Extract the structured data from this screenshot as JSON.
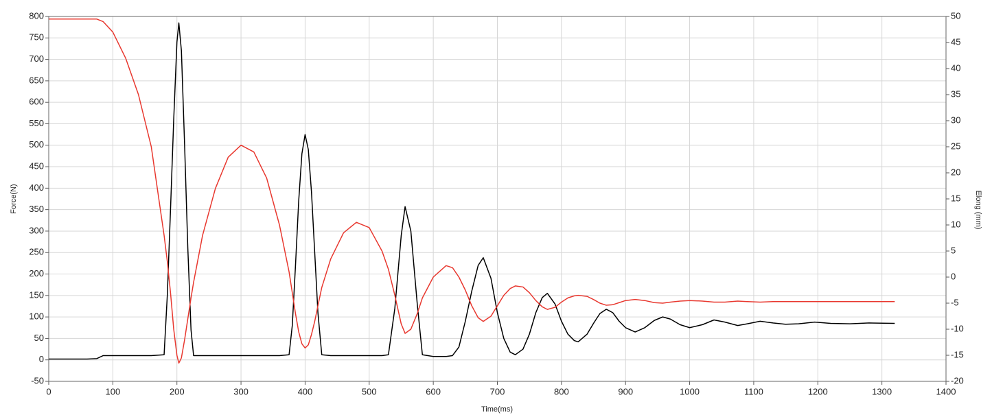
{
  "chart_data": {
    "type": "line",
    "xlabel": "Time(ms)",
    "ylabel": "Force(N)",
    "y2label": "Elong (mm)",
    "xlim": [
      0,
      1400
    ],
    "xticks": [
      0,
      100,
      200,
      300,
      400,
      500,
      600,
      700,
      800,
      900,
      1000,
      1100,
      1200,
      1300,
      1400
    ],
    "ylim": [
      -50,
      800
    ],
    "yticks": [
      -50,
      0,
      50,
      100,
      150,
      200,
      250,
      300,
      350,
      400,
      450,
      500,
      550,
      600,
      650,
      700,
      750,
      800
    ],
    "y2lim": [
      -20,
      50
    ],
    "y2ticks": [
      -20,
      -15,
      -10,
      -5,
      0,
      5,
      10,
      15,
      20,
      25,
      30,
      35,
      40,
      45,
      50
    ],
    "grid": true,
    "x": [
      0,
      20,
      40,
      60,
      75,
      85,
      100,
      120,
      140,
      160,
      180,
      185,
      190,
      195,
      200,
      203,
      207,
      212,
      217,
      222,
      226,
      240,
      260,
      280,
      300,
      320,
      340,
      360,
      375,
      380,
      385,
      390,
      395,
      400,
      405,
      410,
      415,
      420,
      426,
      440,
      460,
      480,
      500,
      520,
      530,
      540,
      550,
      556,
      565,
      575,
      583,
      600,
      620,
      630,
      640,
      650,
      660,
      670,
      678,
      690,
      700,
      710,
      720,
      728,
      740,
      750,
      760,
      770,
      778,
      790,
      800,
      810,
      820,
      826,
      840,
      850,
      860,
      870,
      880,
      890,
      900,
      915,
      930,
      945,
      958,
      970,
      985,
      1000,
      1020,
      1038,
      1055,
      1075,
      1090,
      1110,
      1130,
      1150,
      1170,
      1195,
      1220,
      1250,
      1280,
      1320
    ],
    "series": [
      {
        "color": "#000000",
        "values": [
          2,
          2,
          2,
          2,
          3,
          10,
          10,
          10,
          10,
          10,
          12,
          150,
          350,
          560,
          740,
          785,
          720,
          500,
          260,
          70,
          10,
          10,
          10,
          10,
          10,
          10,
          10,
          10,
          12,
          80,
          220,
          370,
          480,
          525,
          490,
          390,
          250,
          110,
          12,
          10,
          10,
          10,
          10,
          10,
          12,
          120,
          290,
          357,
          300,
          130,
          12,
          8,
          8,
          10,
          30,
          90,
          160,
          220,
          238,
          190,
          110,
          50,
          18,
          12,
          25,
          60,
          110,
          145,
          155,
          130,
          90,
          60,
          45,
          42,
          60,
          85,
          108,
          118,
          110,
          90,
          75,
          65,
          75,
          92,
          100,
          95,
          82,
          75,
          82,
          93,
          88,
          80,
          84,
          90,
          86,
          83,
          84,
          88,
          85,
          84,
          86,
          85
        ]
      },
      {
        "color": "#e8382f",
        "axis": "y2",
        "values": [
          49.5,
          49.5,
          49.5,
          49.5,
          49.5,
          49,
          47,
          42,
          35,
          25,
          8,
          3,
          -3,
          -10,
          -15,
          -16.5,
          -15.5,
          -12,
          -8,
          -4,
          -1,
          8,
          17,
          23,
          25.3,
          24,
          19,
          10,
          1,
          -3,
          -7,
          -10.5,
          -12.8,
          -13.6,
          -13,
          -11,
          -8.5,
          -5.5,
          -2,
          3.5,
          8.5,
          10.5,
          9.5,
          5,
          1.5,
          -3.5,
          -9,
          -10.8,
          -10,
          -7,
          -4,
          0,
          2.2,
          1.8,
          0,
          -2.5,
          -5.5,
          -7.8,
          -8.5,
          -7.5,
          -5.5,
          -3.5,
          -2.2,
          -1.7,
          -1.9,
          -3,
          -4.5,
          -5.7,
          -6.2,
          -5.8,
          -4.8,
          -4,
          -3.6,
          -3.5,
          -3.7,
          -4.3,
          -5,
          -5.4,
          -5.3,
          -4.9,
          -4.5,
          -4.3,
          -4.5,
          -4.9,
          -5,
          -4.8,
          -4.6,
          -4.5,
          -4.6,
          -4.8,
          -4.8,
          -4.6,
          -4.7,
          -4.8,
          -4.7,
          -4.7,
          -4.7,
          -4.7,
          -4.7,
          -4.7,
          -4.7,
          -4.7
        ]
      }
    ]
  }
}
